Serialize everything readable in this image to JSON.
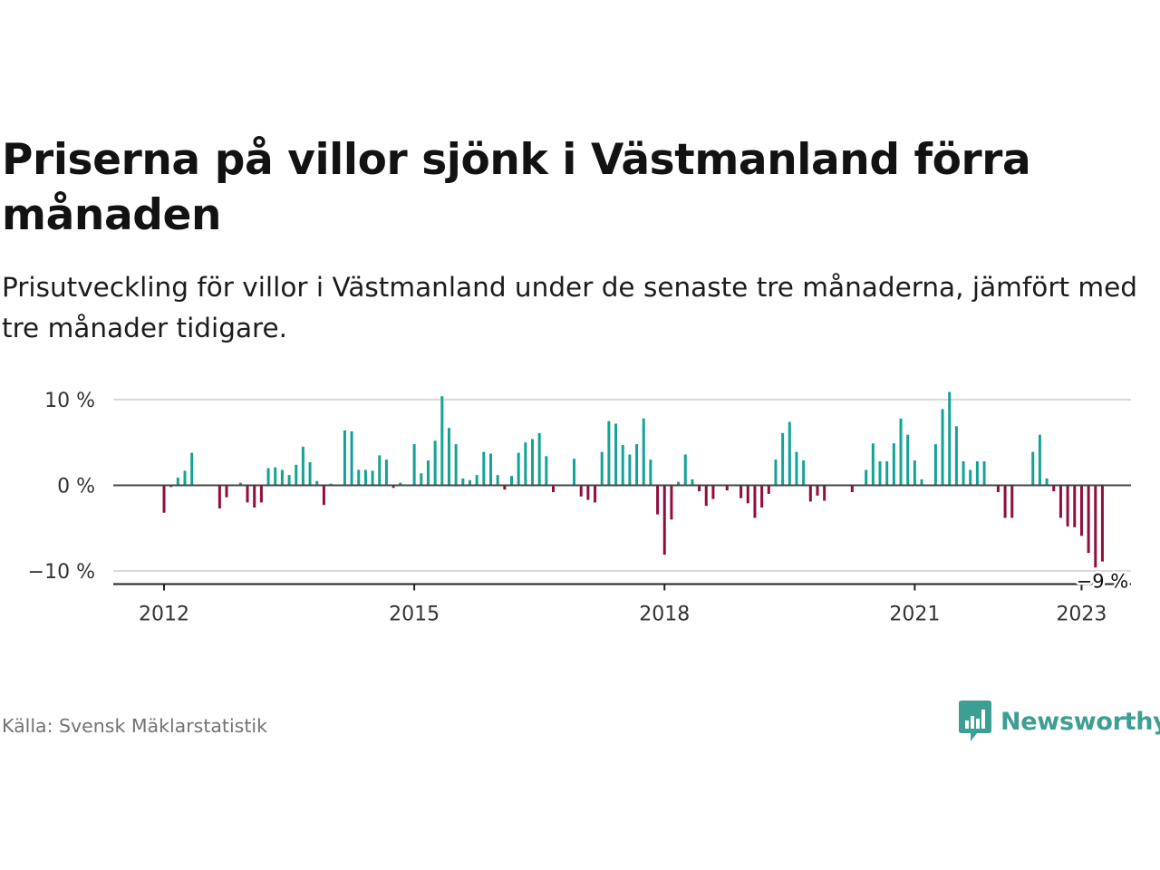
{
  "header": {
    "title": "Priserna på villor sjönk i Västmanland förra månaden",
    "subtitle": "Prisutveckling för villor i Västmanland under de senaste tre månaderna, jämfört med tre månader tidigare."
  },
  "footer": {
    "source": "Källa: Svensk Mäklarstatistik",
    "brand": "Newsworthy",
    "brand_icon": "bar-chart-speech-bubble-icon"
  },
  "colors": {
    "positive": "#13a396",
    "negative": "#930c3e",
    "brand": "#3d9f94",
    "gridline": "#d9d9d9",
    "zero_line": "#444444",
    "text": "#121212",
    "muted": "#737373"
  },
  "chart_data": {
    "type": "bar",
    "title": "Priserna på villor sjönk i Västmanland förra månaden",
    "ylabel": "",
    "xlabel": "",
    "ylim": [
      -11,
      11
    ],
    "y_ticks": [
      -10,
      0,
      10
    ],
    "y_tick_labels": [
      "−10 %",
      "0 %",
      "10 %"
    ],
    "x_ticks": [
      {
        "label": "2012",
        "date": "2012-01"
      },
      {
        "label": "2015",
        "date": "2015-01"
      },
      {
        "label": "2018",
        "date": "2018-01"
      },
      {
        "label": "2021",
        "date": "2021-01"
      },
      {
        "label": "2023",
        "date": "2023-01"
      }
    ],
    "grid": true,
    "legend": "none",
    "series": [
      {
        "start": "2012-01",
        "frequency": "monthly",
        "values": [
          -3.2,
          -0.2,
          0.9,
          1.7,
          3.8,
          0,
          0,
          0,
          -2.7,
          -1.4,
          0,
          0.3,
          -2.0,
          -2.6,
          -2.0,
          2.0,
          2.1,
          1.8,
          1.2,
          2.4,
          4.5,
          2.7,
          0.5,
          -2.3,
          0.2,
          0,
          6.4,
          6.3,
          1.8,
          1.8,
          1.7,
          3.5,
          3.0,
          -0.3,
          0.3,
          0,
          4.8,
          1.4,
          2.9,
          5.2,
          10.4,
          6.7,
          4.8,
          0.8,
          0.6,
          1.2,
          3.9,
          3.7,
          1.2,
          -0.5,
          1.1,
          3.8,
          5.0,
          5.4,
          6.1,
          3.4,
          -0.8,
          0,
          0,
          3.1,
          -1.3,
          -1.7,
          -2.0,
          3.9,
          7.5,
          7.2,
          4.7,
          3.6,
          4.8,
          7.8,
          3.0,
          -3.4,
          -8.1,
          -4.0,
          0.4,
          3.6,
          0.7,
          -0.7,
          -2.4,
          -1.6,
          0,
          -0.6,
          0,
          -1.5,
          -2.1,
          -3.8,
          -2.6,
          -1.0,
          3.0,
          6.1,
          7.4,
          3.9,
          2.9,
          -1.9,
          -1.2,
          -1.8,
          0,
          0,
          0,
          -0.8,
          0,
          1.8,
          4.9,
          2.8,
          2.8,
          4.9,
          7.8,
          5.9,
          2.9,
          0.7,
          0,
          4.8,
          8.9,
          10.9,
          6.9,
          2.8,
          1.8,
          2.8,
          2.8,
          0,
          -0.8,
          -3.8,
          -3.8,
          0,
          0,
          3.9,
          5.9,
          0.8,
          -0.7,
          -3.8,
          -4.8,
          -4.9,
          -5.9,
          -7.9,
          -9.6,
          -8.9
        ]
      }
    ],
    "annotations": [
      {
        "text": "−9 %",
        "date": "2023-04",
        "value": -9
      }
    ]
  }
}
